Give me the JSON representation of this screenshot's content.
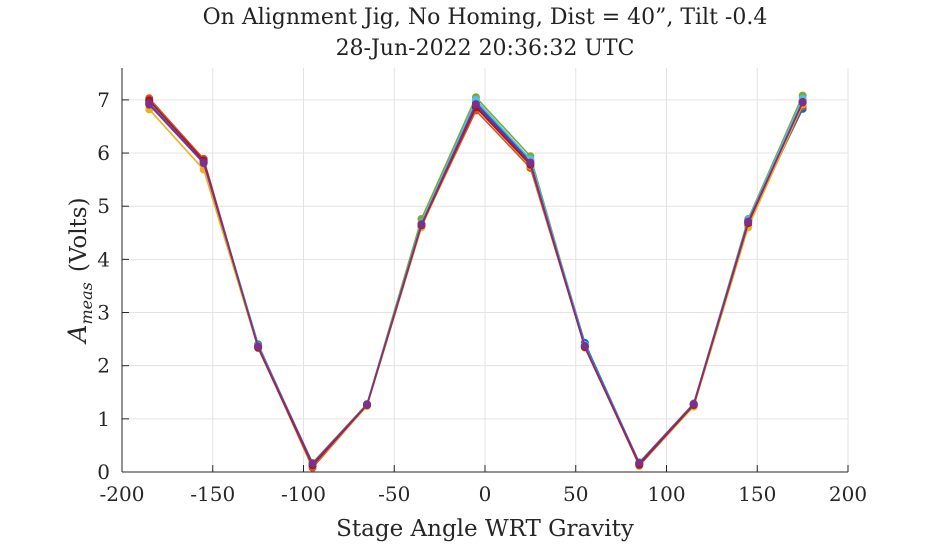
{
  "chart_data": {
    "type": "line",
    "title": "On Alignment Jig, No Homing, Dist = 40”, Tilt -0.4",
    "subtitle": "28-Jun-2022 20:36:32 UTC",
    "xlabel": "Stage Angle WRT Gravity",
    "ylabel_main": "A",
    "ylabel_sub": "meas",
    "ylabel_units": "(Volts)",
    "xlim": [
      -200,
      200
    ],
    "ylim": [
      0,
      7.6
    ],
    "xticks": [
      -200,
      -150,
      -100,
      -50,
      0,
      50,
      100,
      150,
      200
    ],
    "yticks": [
      0,
      1,
      2,
      3,
      4,
      5,
      6,
      7
    ],
    "grid": true,
    "x": [
      -185,
      -155,
      -125,
      -95,
      -65,
      -35,
      -5,
      25,
      55,
      85,
      115,
      145,
      175
    ],
    "series": [
      {
        "color": "#0072BD",
        "values": [
          6.93,
          5.83,
          2.4,
          0.15,
          1.26,
          4.65,
          6.95,
          5.85,
          2.43,
          0.17,
          1.27,
          4.72,
          6.83
        ]
      },
      {
        "color": "#D95319",
        "values": [
          7.03,
          5.89,
          2.35,
          0.08,
          1.25,
          4.63,
          6.8,
          5.72,
          2.36,
          0.12,
          1.24,
          4.63,
          6.88
        ]
      },
      {
        "color": "#EDB120",
        "values": [
          6.82,
          5.69,
          2.33,
          0.11,
          1.24,
          4.6,
          6.86,
          5.76,
          2.34,
          0.14,
          1.23,
          4.6,
          6.92
        ]
      },
      {
        "color": "#7E2F8E",
        "values": [
          6.91,
          5.81,
          2.37,
          0.16,
          1.27,
          4.65,
          6.9,
          5.8,
          2.36,
          0.16,
          1.28,
          4.7,
          6.97
        ]
      },
      {
        "color": "#77AC30",
        "values": [
          6.98,
          5.85,
          2.38,
          0.17,
          1.28,
          4.76,
          7.05,
          5.94,
          2.38,
          0.18,
          1.29,
          4.76,
          7.08
        ]
      },
      {
        "color": "#4DBEEE",
        "values": [
          6.95,
          5.84,
          2.37,
          0.16,
          1.27,
          4.68,
          7.0,
          5.88,
          2.39,
          0.17,
          1.28,
          4.74,
          7.02
        ]
      },
      {
        "color": "#A2142F",
        "values": [
          6.99,
          5.86,
          2.34,
          0.12,
          1.26,
          4.64,
          6.86,
          5.78,
          2.35,
          0.14,
          1.26,
          4.68,
          6.96
        ]
      },
      {
        "color": "#7E2F8E",
        "values": [
          6.93,
          5.82,
          2.36,
          0.16,
          1.27,
          4.66,
          6.92,
          5.82,
          2.37,
          0.17,
          1.28,
          4.71,
          6.95
        ]
      }
    ]
  }
}
